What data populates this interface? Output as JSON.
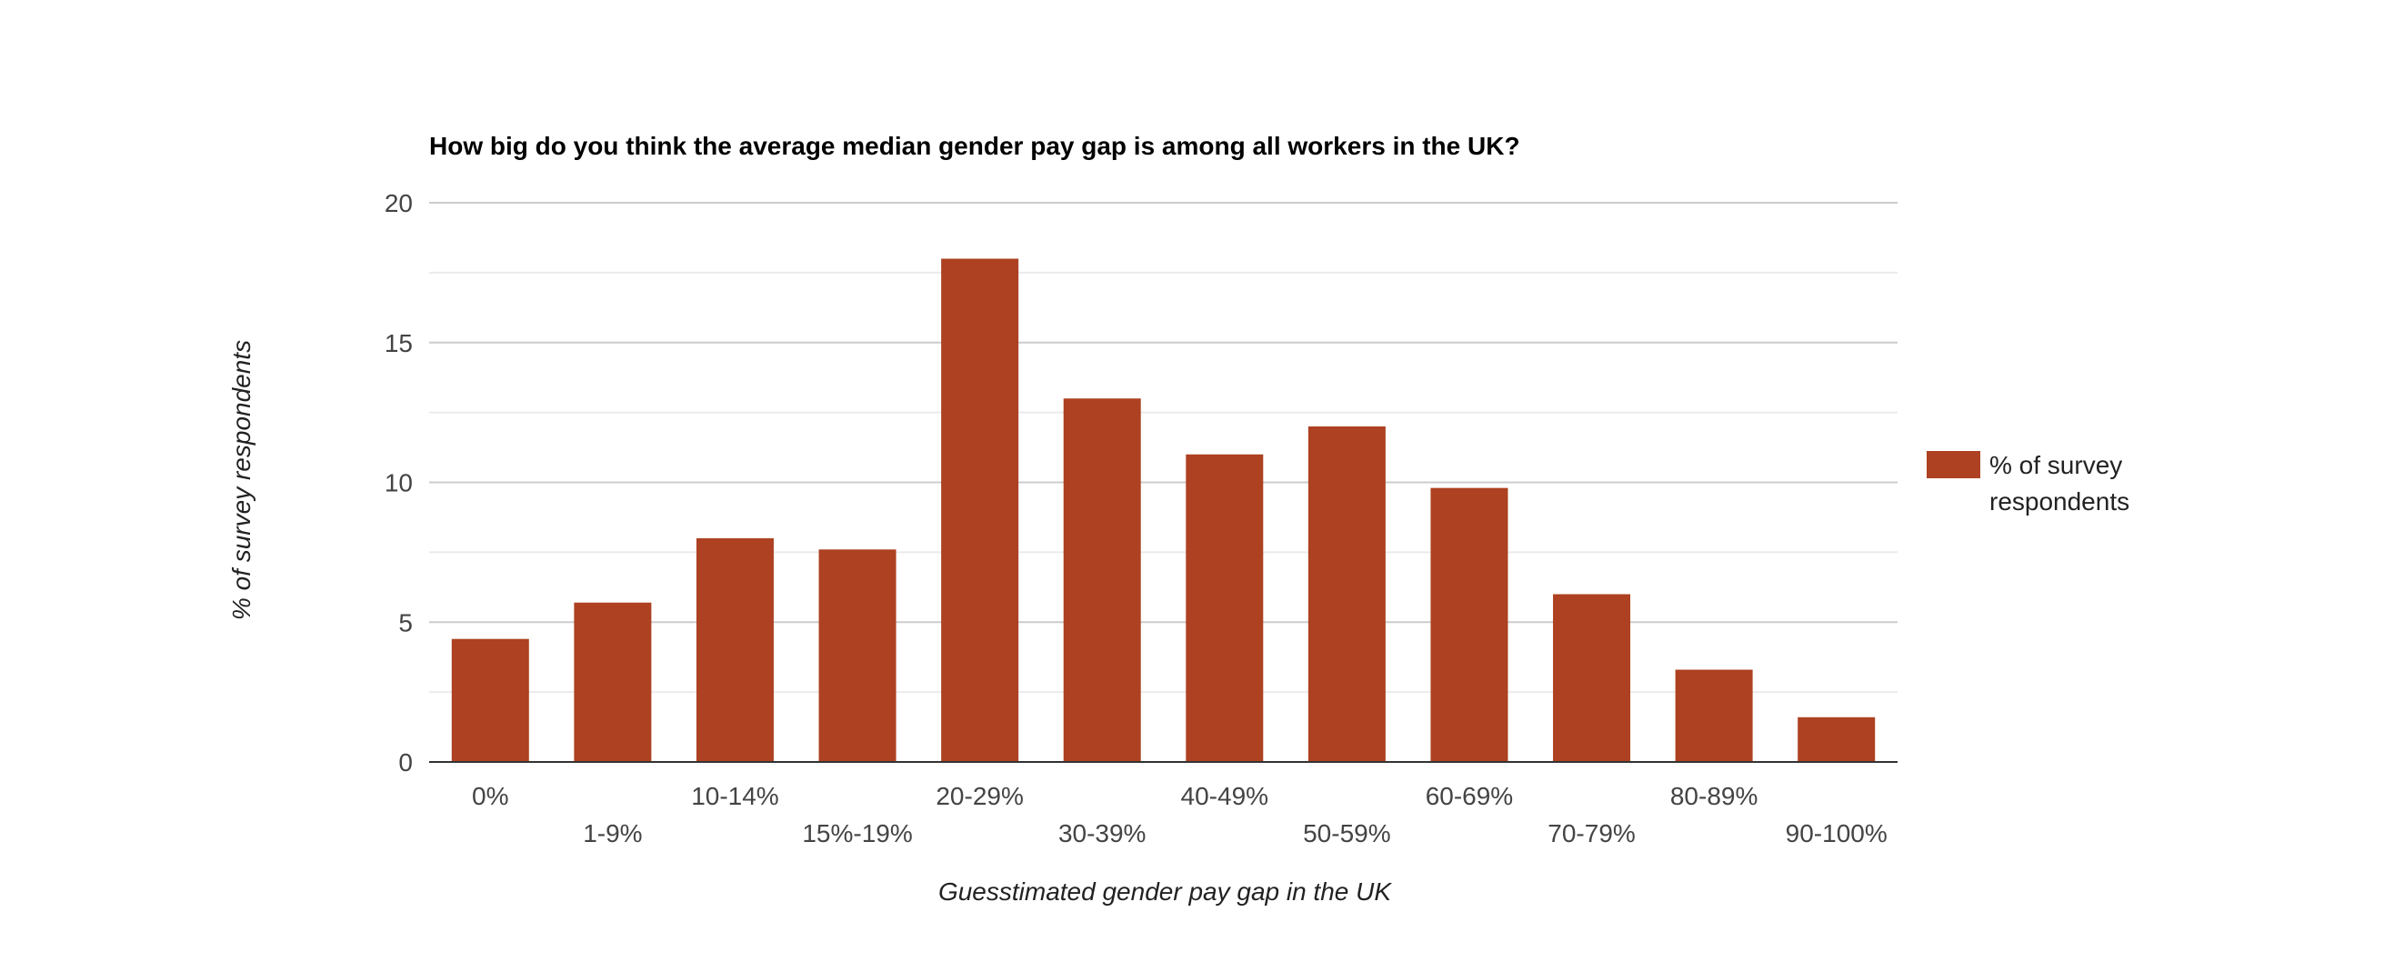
{
  "chart_data": {
    "type": "bar",
    "title": "How big do you think the average median gender pay gap is among all workers in the UK?",
    "xlabel": "Guesstimated gender pay gap in the UK",
    "ylabel": "% of survey respondents",
    "categories": [
      "0%",
      "1-9%",
      "10-14%",
      "15%-19%",
      "20-29%",
      "30-39%",
      "40-49%",
      "50-59%",
      "60-69%",
      "70-79%",
      "80-89%",
      "90-100%"
    ],
    "series": [
      {
        "name": "% of survey respondents",
        "color": "#ad4121",
        "values": [
          4.4,
          5.7,
          8,
          7.6,
          18,
          13,
          11,
          12,
          9.8,
          6,
          3.3,
          1.6
        ]
      }
    ],
    "ylim": [
      0,
      20
    ],
    "yticks": [
      0,
      5,
      10,
      15,
      20
    ],
    "grid": true,
    "legend": {
      "placement": "right",
      "lines": [
        "% of survey",
        "respondents"
      ]
    }
  }
}
